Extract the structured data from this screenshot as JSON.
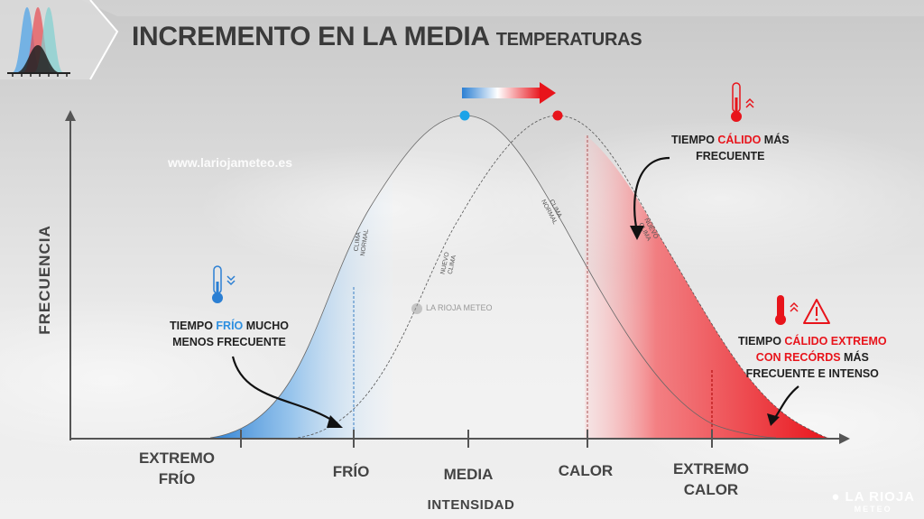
{
  "title": {
    "main": "INCREMENTO EN LA MEDIA",
    "sub": "TEMPERATURAS"
  },
  "watermark_url": "www.lariojameteo.es",
  "axes": {
    "y_label": "FRECUENCIA",
    "x_label": "INTENSIDAD"
  },
  "x_categories": [
    "EXTREMO\nFRÍO",
    "FRÍO",
    "MEDIA",
    "CALOR",
    "EXTREMO\nCALOR"
  ],
  "curve_labels": {
    "normal_a": "CLIMA\nNORMAL",
    "nuevo_a": "NUEVO\nCLIMA",
    "normal_b": "CLIMA\nNORMAL",
    "nuevo_b": "NUEVO\nCLIMA"
  },
  "annotations": {
    "frio": {
      "p1": "TIEMPO ",
      "hl": "FRÍO",
      "p2": " MUCHO",
      "line2": "MENOS FRECUENTE"
    },
    "calido": {
      "p1": "TIEMPO ",
      "hl": "CÁLIDO",
      "p2": " MÁS",
      "line2": "FRECUENTE"
    },
    "extremo": {
      "p1": "TIEMPO ",
      "hl1": "CÁLIDO EXTREMO",
      "hl2": "CON RECÓRDS",
      "p2": " MÁS",
      "line3": "FRECUENTE E INTENSO"
    }
  },
  "brand": {
    "name": "LA RIOJA",
    "sub": "METEO",
    "mid": "LA RIOJA METEO"
  },
  "colors": {
    "cold": "#2b7fd3",
    "warm": "#e8141b",
    "axis": "#555555",
    "text": "#444444"
  },
  "icons": [
    "thermometer-cold-icon",
    "thermometer-hot-icon",
    "warning-icon",
    "arrow-right-icon",
    "brand-logo-icon"
  ]
}
